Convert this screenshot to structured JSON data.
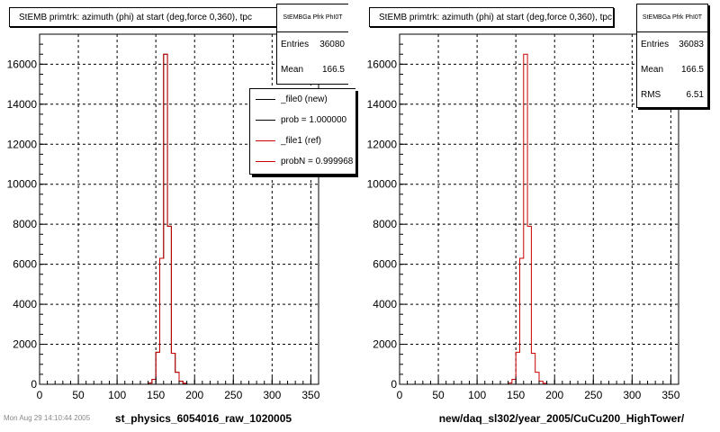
{
  "colors": {
    "ref_line": "#cc0000",
    "new_line": "#000000",
    "grid": "#000000",
    "frame": "#000000"
  },
  "footer": "Mon Aug 29 14:10:44 2005",
  "left_panel": {
    "title": "StEMB primtrk: azimuth (phi) at start (deg,force 0,360), tpc",
    "stats": {
      "name": "StEMBGa Pfrk PhI0T",
      "entries_label": "Entries",
      "entries": "36080",
      "mean_label": "Mean",
      "mean": "166.5"
    },
    "legend": [
      {
        "label": "_file0 (new)",
        "color": "#000000"
      },
      {
        "label": "prob = 1.000000",
        "color": "#000000"
      },
      {
        "label": "_file1 (ref)",
        "color": "#cc0000"
      },
      {
        "label": "probN = 0.999968",
        "color": "#cc0000"
      }
    ],
    "xlabel": "st_physics_6054016_raw_1020005"
  },
  "right_panel": {
    "title": "StEMB primtrk: azimuth (phi) at start (deg,force 0,360), tpc",
    "stats": {
      "name": "StEMBGa Pfrk PhI0T",
      "entries_label": "Entries",
      "entries": "36083",
      "mean_label": "Mean",
      "mean": "166.5",
      "rms_label": "RMS",
      "rms": "6.51"
    },
    "xlabel": "new/daq_sl302/year_2005/CuCu200_HighTower/"
  },
  "chart_data": [
    {
      "type": "histogram",
      "title": "StEMB primtrk: azimuth (phi) at start (deg,force 0,360), tpc",
      "xlabel": "st_physics_6054016_raw_1020005",
      "ylabel": "",
      "xlim": [
        0,
        360
      ],
      "ylim": [
        0,
        17500
      ],
      "grid": true,
      "bin_width": 5,
      "x_ticks": [
        0,
        50,
        100,
        150,
        200,
        250,
        300,
        350
      ],
      "y_ticks": [
        0,
        2000,
        4000,
        6000,
        8000,
        10000,
        12000,
        14000,
        16000
      ],
      "series": [
        {
          "name": "_file0 (new)",
          "color": "#000000",
          "bins_from": 140,
          "values": [
            60,
            250,
            1600,
            6300,
            16500,
            7900,
            1550,
            600,
            150,
            50
          ]
        },
        {
          "name": "_file1 (ref)",
          "color": "#cc0000",
          "bins_from": 140,
          "values": [
            60,
            250,
            1600,
            6300,
            16500,
            7900,
            1550,
            600,
            150,
            50
          ]
        }
      ]
    },
    {
      "type": "histogram",
      "title": "StEMB primtrk: azimuth (phi) at start (deg,force 0,360), tpc",
      "xlabel": "new/daq_sl302/year_2005/CuCu200_HighTower/",
      "ylabel": "",
      "xlim": [
        0,
        360
      ],
      "ylim": [
        0,
        17500
      ],
      "grid": true,
      "bin_width": 5,
      "x_ticks": [
        0,
        50,
        100,
        150,
        200,
        250,
        300,
        350
      ],
      "y_ticks": [
        0,
        2000,
        4000,
        6000,
        8000,
        10000,
        12000,
        14000,
        16000
      ],
      "series": [
        {
          "name": "_file0 (new)",
          "color": "#cc0000",
          "bins_from": 140,
          "values": [
            60,
            250,
            1600,
            6300,
            16500,
            7900,
            1550,
            600,
            150,
            50
          ]
        }
      ]
    }
  ]
}
